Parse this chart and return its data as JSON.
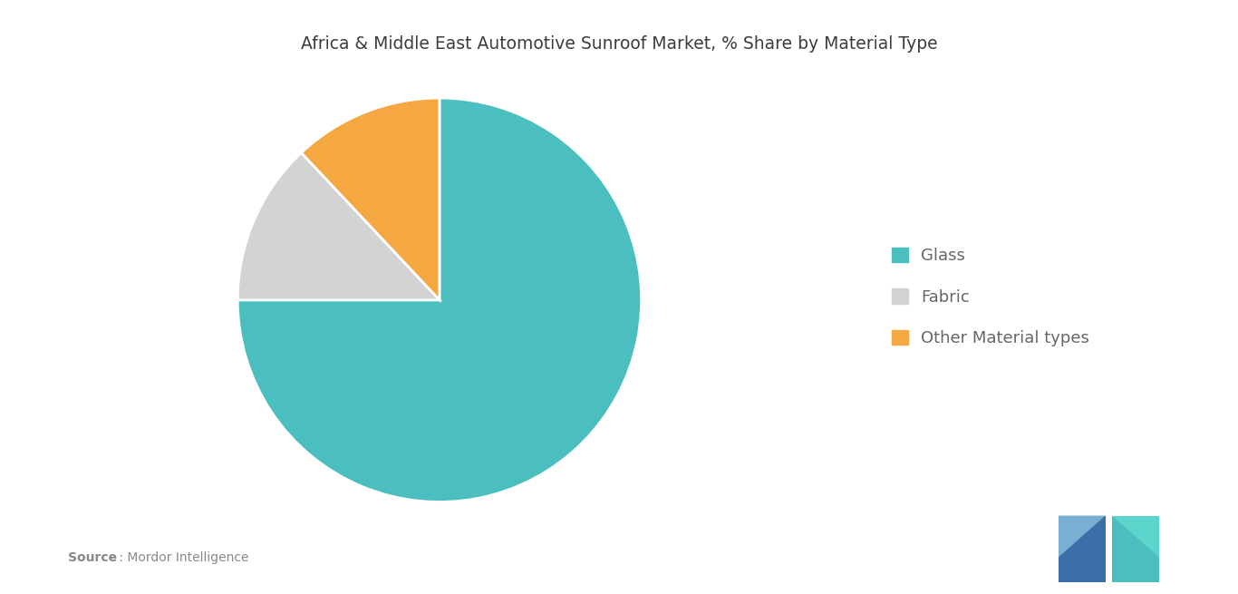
{
  "title": "Africa & Middle East Automotive Sunroof Market, % Share by Material Type",
  "slices": [
    75,
    13,
    12
  ],
  "labels": [
    "Glass",
    "Fabric",
    "Other Material types"
  ],
  "colors": [
    "#4bbfbf",
    "#d3d3d3",
    "#f5a742"
  ],
  "startangle": 90,
  "background_color": "#ffffff",
  "title_fontsize": 13.5,
  "legend_fontsize": 13,
  "source_bold": "Source",
  "source_regular": " : Mordor Intelligence",
  "logo_dark": "#3a6fa8",
  "logo_teal": "#4bbfbf",
  "logo_teal2": "#5dd5cc"
}
